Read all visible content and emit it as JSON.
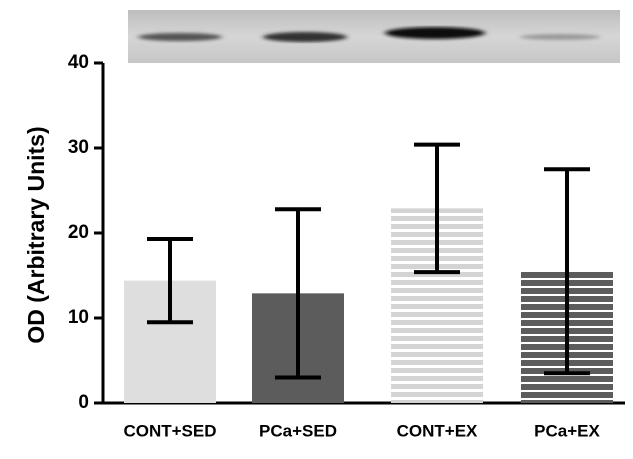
{
  "chart_data": {
    "type": "bar",
    "y_label": "OD (Arbitrary Units)",
    "categories": [
      "CONT+SED",
      "PCa+SED",
      "CONT+EX",
      "PCa+EX"
    ],
    "values": [
      14.4,
      12.9,
      22.9,
      15.5
    ],
    "errors": [
      4.9,
      9.9,
      7.5,
      12
    ],
    "colors": [
      "#dedede",
      "#5c5c5c",
      "#e4e4e4",
      "#5c5c5c"
    ],
    "stripes": [
      false,
      false,
      true,
      true
    ],
    "ylim": [
      0,
      40
    ],
    "yticks": [
      0,
      10,
      20,
      30,
      40
    ]
  }
}
